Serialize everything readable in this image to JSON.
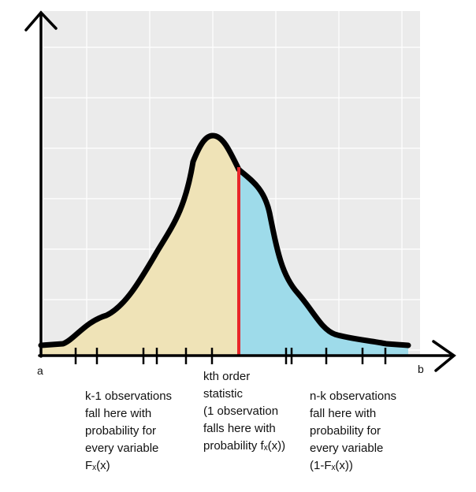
{
  "end_labels": {
    "left": "a",
    "right": "b"
  },
  "annotations": {
    "left": [
      "k-1 observations",
      "fall here with",
      "probability for",
      "every variable",
      "Fₓ(x)"
    ],
    "middle": [
      "kth order",
      "statistic",
      "(1 observation",
      "falls here with",
      "probability fₓ(x))"
    ],
    "right": [
      "n-k observations",
      "fall here with",
      "probability for",
      "every variable",
      "(1-Fₓ(x))"
    ]
  },
  "colors": {
    "background_panel": "#ebebeb",
    "grid": "#ffffff",
    "left_fill": "#efe3b7",
    "right_fill": "#9edbea",
    "curve": "#000000",
    "split_line": "#e8262a"
  }
}
